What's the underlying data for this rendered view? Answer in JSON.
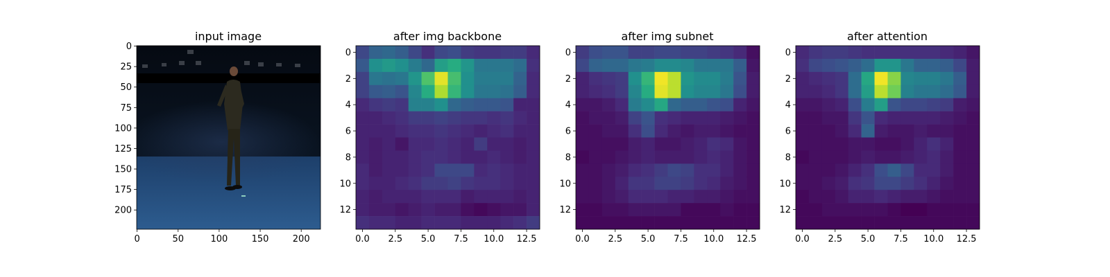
{
  "chart_data": [
    {
      "type": "image",
      "title": "input image",
      "xlim": [
        -0.5,
        223.5
      ],
      "ylim": [
        223.5,
        -0.5
      ],
      "xticks": [
        0,
        50,
        100,
        150,
        200
      ],
      "yticks": [
        0,
        25,
        50,
        75,
        100,
        125,
        150,
        175,
        200
      ],
      "xtick_labels": [
        "0",
        "50",
        "100",
        "150",
        "200"
      ],
      "ytick_labels": [
        "0",
        "25",
        "50",
        "75",
        "100",
        "125",
        "150",
        "175",
        "200"
      ]
    },
    {
      "type": "heatmap",
      "title": "after img backbone",
      "colormap": "viridis",
      "xlim": [
        -0.5,
        13.5
      ],
      "ylim": [
        13.5,
        -0.5
      ],
      "xticks": [
        0,
        2.5,
        5,
        7.5,
        10,
        12.5
      ],
      "yticks": [
        0,
        2,
        4,
        6,
        8,
        10,
        12
      ],
      "xtick_labels": [
        "0.0",
        "2.5",
        "5.0",
        "7.5",
        "10.0",
        "12.5"
      ],
      "ytick_labels": [
        "0",
        "2",
        "4",
        "6",
        "8",
        "10",
        "12"
      ],
      "values": [
        [
          0.22,
          0.32,
          0.34,
          0.3,
          0.22,
          0.14,
          0.22,
          0.24,
          0.18,
          0.16,
          0.16,
          0.18,
          0.18,
          0.12
        ],
        [
          0.28,
          0.5,
          0.54,
          0.5,
          0.42,
          0.34,
          0.56,
          0.62,
          0.52,
          0.4,
          0.4,
          0.4,
          0.36,
          0.14
        ],
        [
          0.2,
          0.4,
          0.38,
          0.4,
          0.52,
          0.72,
          0.96,
          0.7,
          0.5,
          0.42,
          0.42,
          0.42,
          0.32,
          0.12
        ],
        [
          0.2,
          0.28,
          0.3,
          0.26,
          0.46,
          0.62,
          0.88,
          0.66,
          0.5,
          0.4,
          0.4,
          0.38,
          0.3,
          0.12
        ],
        [
          0.12,
          0.16,
          0.18,
          0.16,
          0.44,
          0.44,
          0.5,
          0.34,
          0.3,
          0.28,
          0.28,
          0.26,
          0.1,
          0.1
        ],
        [
          0.1,
          0.1,
          0.12,
          0.14,
          0.18,
          0.18,
          0.2,
          0.18,
          0.16,
          0.16,
          0.14,
          0.16,
          0.12,
          0.1
        ],
        [
          0.1,
          0.1,
          0.1,
          0.12,
          0.14,
          0.14,
          0.16,
          0.14,
          0.12,
          0.1,
          0.12,
          0.14,
          0.1,
          0.1
        ],
        [
          0.1,
          0.08,
          0.1,
          0.06,
          0.12,
          0.12,
          0.14,
          0.12,
          0.1,
          0.18,
          0.1,
          0.1,
          0.08,
          0.1
        ],
        [
          0.1,
          0.08,
          0.1,
          0.1,
          0.12,
          0.14,
          0.14,
          0.12,
          0.1,
          0.1,
          0.12,
          0.1,
          0.08,
          0.1
        ],
        [
          0.12,
          0.08,
          0.1,
          0.1,
          0.12,
          0.14,
          0.22,
          0.22,
          0.22,
          0.12,
          0.14,
          0.12,
          0.1,
          0.1
        ],
        [
          0.12,
          0.1,
          0.1,
          0.12,
          0.14,
          0.18,
          0.18,
          0.2,
          0.16,
          0.14,
          0.14,
          0.12,
          0.1,
          0.1
        ],
        [
          0.1,
          0.08,
          0.1,
          0.1,
          0.1,
          0.12,
          0.12,
          0.12,
          0.08,
          0.1,
          0.1,
          0.1,
          0.08,
          0.1
        ],
        [
          0.1,
          0.08,
          0.08,
          0.06,
          0.08,
          0.1,
          0.08,
          0.08,
          0.04,
          0.02,
          0.04,
          0.06,
          0.06,
          0.1
        ],
        [
          0.14,
          0.12,
          0.12,
          0.1,
          0.1,
          0.12,
          0.12,
          0.12,
          0.1,
          0.1,
          0.1,
          0.12,
          0.14,
          0.18
        ]
      ]
    },
    {
      "type": "heatmap",
      "title": "after img subnet",
      "colormap": "viridis",
      "xlim": [
        -0.5,
        13.5
      ],
      "ylim": [
        13.5,
        -0.5
      ],
      "xticks": [
        0,
        2.5,
        5,
        7.5,
        10,
        12.5
      ],
      "yticks": [
        0,
        2,
        4,
        6,
        8,
        10,
        12
      ],
      "xtick_labels": [
        "0.0",
        "2.5",
        "5.0",
        "7.5",
        "10.0",
        "12.5"
      ],
      "ytick_labels": [
        "0",
        "2",
        "4",
        "6",
        "8",
        "10",
        "12"
      ],
      "values": [
        [
          0.18,
          0.24,
          0.26,
          0.26,
          0.2,
          0.2,
          0.22,
          0.22,
          0.2,
          0.2,
          0.18,
          0.16,
          0.12,
          0.04
        ],
        [
          0.22,
          0.32,
          0.34,
          0.34,
          0.4,
          0.42,
          0.48,
          0.48,
          0.46,
          0.4,
          0.4,
          0.4,
          0.3,
          0.06
        ],
        [
          0.1,
          0.14,
          0.16,
          0.18,
          0.5,
          0.66,
          0.98,
          0.9,
          0.52,
          0.48,
          0.48,
          0.42,
          0.26,
          0.08
        ],
        [
          0.1,
          0.12,
          0.14,
          0.18,
          0.46,
          0.62,
          0.96,
          0.9,
          0.5,
          0.46,
          0.46,
          0.4,
          0.24,
          0.08
        ],
        [
          0.06,
          0.06,
          0.08,
          0.12,
          0.42,
          0.48,
          0.6,
          0.34,
          0.3,
          0.3,
          0.26,
          0.24,
          0.1,
          0.06
        ],
        [
          0.04,
          0.06,
          0.06,
          0.08,
          0.2,
          0.26,
          0.14,
          0.12,
          0.1,
          0.1,
          0.1,
          0.08,
          0.06,
          0.04
        ],
        [
          0.04,
          0.04,
          0.06,
          0.06,
          0.14,
          0.24,
          0.12,
          0.08,
          0.06,
          0.08,
          0.08,
          0.06,
          0.04,
          0.04
        ],
        [
          0.04,
          0.04,
          0.04,
          0.04,
          0.08,
          0.1,
          0.06,
          0.06,
          0.08,
          0.1,
          0.14,
          0.12,
          0.06,
          0.04
        ],
        [
          0.02,
          0.04,
          0.04,
          0.06,
          0.08,
          0.1,
          0.08,
          0.08,
          0.08,
          0.1,
          0.12,
          0.1,
          0.06,
          0.04
        ],
        [
          0.04,
          0.04,
          0.06,
          0.08,
          0.12,
          0.14,
          0.18,
          0.22,
          0.2,
          0.14,
          0.14,
          0.1,
          0.06,
          0.04
        ],
        [
          0.04,
          0.04,
          0.06,
          0.1,
          0.16,
          0.16,
          0.2,
          0.2,
          0.18,
          0.14,
          0.12,
          0.08,
          0.06,
          0.04
        ],
        [
          0.04,
          0.04,
          0.06,
          0.08,
          0.12,
          0.12,
          0.12,
          0.1,
          0.1,
          0.08,
          0.08,
          0.06,
          0.04,
          0.04
        ],
        [
          0.02,
          0.02,
          0.04,
          0.04,
          0.06,
          0.06,
          0.06,
          0.06,
          0.02,
          0.02,
          0.02,
          0.04,
          0.02,
          0.02
        ],
        [
          0.02,
          0.02,
          0.02,
          0.02,
          0.02,
          0.02,
          0.02,
          0.02,
          0.02,
          0.02,
          0.02,
          0.02,
          0.02,
          0.02
        ]
      ]
    },
    {
      "type": "heatmap",
      "title": "after attention",
      "colormap": "viridis",
      "xlim": [
        -0.5,
        13.5
      ],
      "ylim": [
        13.5,
        -0.5
      ],
      "xticks": [
        0,
        2.5,
        5,
        7.5,
        10,
        12.5
      ],
      "yticks": [
        0,
        2,
        4,
        6,
        8,
        10,
        12
      ],
      "xtick_labels": [
        "0.0",
        "2.5",
        "5.0",
        "7.5",
        "10.0",
        "12.5"
      ],
      "ytick_labels": [
        "0",
        "2",
        "4",
        "6",
        "8",
        "10",
        "12"
      ],
      "values": [
        [
          0.12,
          0.16,
          0.18,
          0.18,
          0.16,
          0.14,
          0.14,
          0.14,
          0.14,
          0.14,
          0.14,
          0.12,
          0.1,
          0.06
        ],
        [
          0.14,
          0.22,
          0.24,
          0.26,
          0.3,
          0.36,
          0.52,
          0.52,
          0.4,
          0.32,
          0.32,
          0.3,
          0.22,
          0.08
        ],
        [
          0.1,
          0.12,
          0.14,
          0.16,
          0.36,
          0.6,
          0.98,
          0.82,
          0.46,
          0.44,
          0.44,
          0.4,
          0.3,
          0.08
        ],
        [
          0.1,
          0.1,
          0.12,
          0.16,
          0.36,
          0.56,
          0.9,
          0.78,
          0.44,
          0.4,
          0.4,
          0.36,
          0.28,
          0.08
        ],
        [
          0.06,
          0.06,
          0.08,
          0.1,
          0.24,
          0.42,
          0.56,
          0.26,
          0.22,
          0.22,
          0.2,
          0.18,
          0.08,
          0.06
        ],
        [
          0.04,
          0.04,
          0.06,
          0.06,
          0.16,
          0.26,
          0.12,
          0.1,
          0.1,
          0.1,
          0.1,
          0.08,
          0.06,
          0.04
        ],
        [
          0.04,
          0.04,
          0.04,
          0.06,
          0.12,
          0.32,
          0.08,
          0.06,
          0.06,
          0.08,
          0.06,
          0.06,
          0.04,
          0.04
        ],
        [
          0.04,
          0.04,
          0.04,
          0.04,
          0.06,
          0.06,
          0.04,
          0.04,
          0.06,
          0.1,
          0.14,
          0.1,
          0.04,
          0.04
        ],
        [
          0.02,
          0.04,
          0.04,
          0.04,
          0.06,
          0.08,
          0.06,
          0.06,
          0.08,
          0.1,
          0.12,
          0.08,
          0.04,
          0.04
        ],
        [
          0.04,
          0.04,
          0.04,
          0.06,
          0.1,
          0.14,
          0.24,
          0.3,
          0.22,
          0.12,
          0.12,
          0.08,
          0.04,
          0.04
        ],
        [
          0.04,
          0.04,
          0.06,
          0.08,
          0.14,
          0.16,
          0.22,
          0.22,
          0.18,
          0.14,
          0.1,
          0.06,
          0.04,
          0.04
        ],
        [
          0.02,
          0.04,
          0.04,
          0.06,
          0.1,
          0.1,
          0.12,
          0.1,
          0.08,
          0.08,
          0.06,
          0.04,
          0.04,
          0.04
        ],
        [
          0.02,
          0.02,
          0.04,
          0.04,
          0.04,
          0.04,
          0.04,
          0.02,
          0.0,
          0.0,
          0.02,
          0.02,
          0.02,
          0.02
        ],
        [
          0.02,
          0.02,
          0.02,
          0.02,
          0.02,
          0.02,
          0.02,
          0.02,
          0.02,
          0.02,
          0.02,
          0.02,
          0.02,
          0.02
        ]
      ]
    }
  ]
}
